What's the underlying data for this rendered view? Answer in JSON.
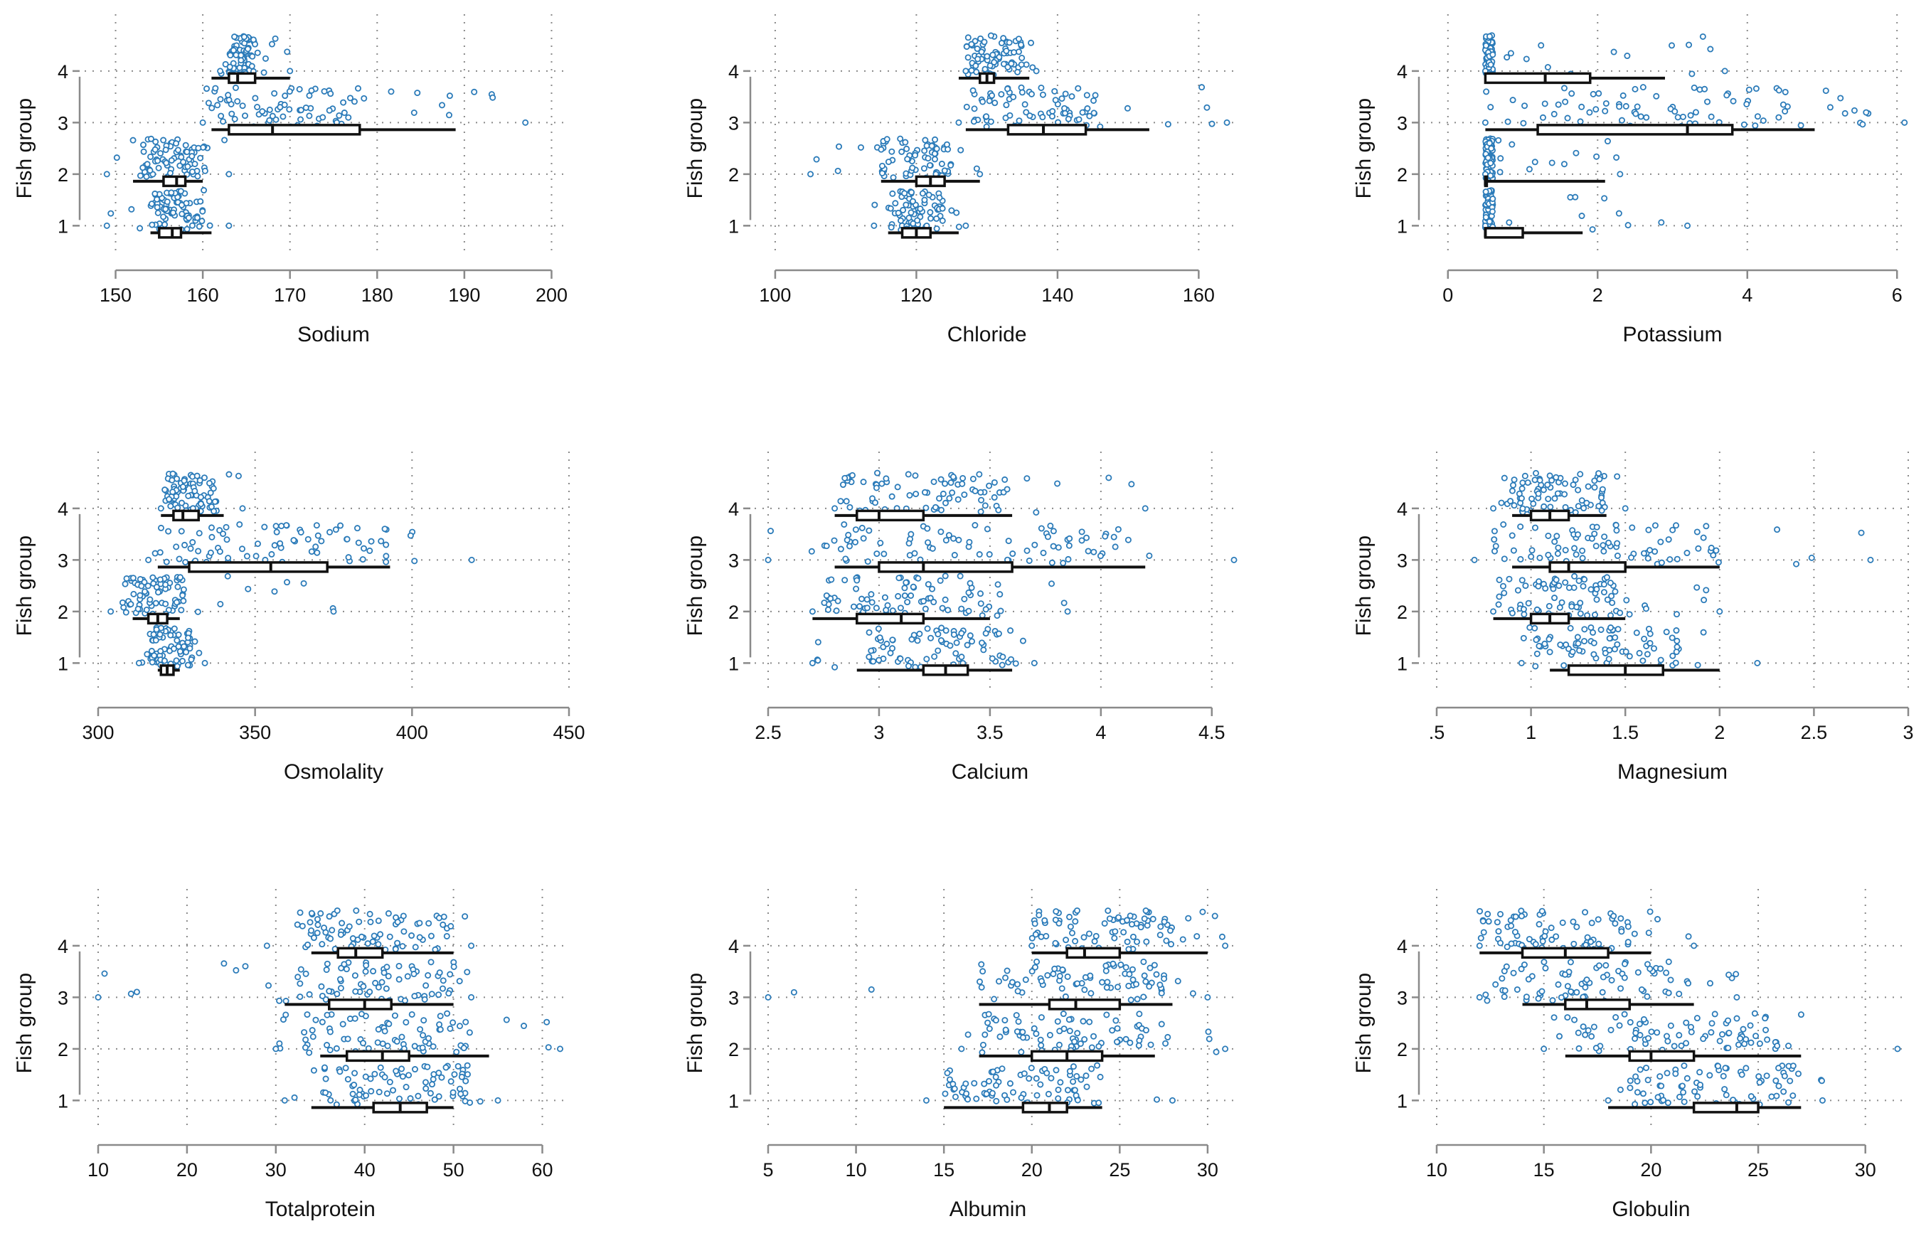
{
  "figure": {
    "y_axis_title": "Fish group",
    "point_color": "#2b7bb9",
    "box_color": "#111111",
    "grid_color": "#8a8a8a",
    "axis_color": "#8a8a8a"
  },
  "chart_data": [
    {
      "type": "stripplot-box",
      "variable": "Sodium",
      "xlabel": "Sodium",
      "ylabel": "Fish group",
      "xlim": [
        148,
        202
      ],
      "ylim": [
        0.55,
        4.55
      ],
      "xticks": [
        150,
        160,
        170,
        180,
        190,
        200
      ],
      "xtick_labels": [
        "150",
        "160",
        "170",
        "180",
        "190",
        "200"
      ],
      "yticks": [
        1,
        2,
        3,
        4
      ],
      "ytick_labels": [
        "1",
        "2",
        "3",
        "4"
      ],
      "grid": true,
      "groups": [
        {
          "group": 1,
          "whisker_low": 154,
          "q1": 155,
          "median": 156.5,
          "q3": 157.5,
          "whisker_high": 161,
          "range": [
            149,
            163
          ],
          "dense": [
            154,
            160
          ]
        },
        {
          "group": 2,
          "whisker_low": 152,
          "q1": 155.5,
          "median": 157,
          "q3": 158,
          "whisker_high": 160,
          "range": [
            149,
            163
          ],
          "dense": [
            153,
            160
          ]
        },
        {
          "group": 3,
          "whisker_low": 161,
          "q1": 163,
          "median": 168,
          "q3": 178,
          "whisker_high": 189,
          "range": [
            160,
            197
          ],
          "dense": [
            161,
            178
          ]
        },
        {
          "group": 4,
          "whisker_low": 161,
          "q1": 163,
          "median": 164,
          "q3": 166,
          "whisker_high": 170,
          "range": [
            162,
            170
          ],
          "dense": [
            163,
            166
          ]
        }
      ]
    },
    {
      "type": "stripplot-box",
      "variable": "Chloride",
      "xlabel": "Chloride",
      "ylabel": "Fish group",
      "xlim": [
        99,
        165
      ],
      "ylim": [
        0.55,
        4.55
      ],
      "xticks": [
        100,
        120,
        140,
        160
      ],
      "xtick_labels": [
        "100",
        "120",
        "140",
        "160"
      ],
      "yticks": [
        1,
        2,
        3,
        4
      ],
      "ytick_labels": [
        "1",
        "2",
        "3",
        "4"
      ],
      "grid": true,
      "groups": [
        {
          "group": 1,
          "whisker_low": 116,
          "q1": 118,
          "median": 120,
          "q3": 122,
          "whisker_high": 126,
          "range": [
            114,
            127
          ],
          "dense": [
            116,
            124
          ]
        },
        {
          "group": 2,
          "whisker_low": 115,
          "q1": 120,
          "median": 122,
          "q3": 124,
          "whisker_high": 129,
          "range": [
            105,
            129
          ],
          "dense": [
            115,
            125
          ]
        },
        {
          "group": 3,
          "whisker_low": 127,
          "q1": 133,
          "median": 138,
          "q3": 144,
          "whisker_high": 153,
          "range": [
            126,
            164
          ],
          "dense": [
            128,
            146
          ]
        },
        {
          "group": 4,
          "whisker_low": 126,
          "q1": 129,
          "median": 130,
          "q3": 131,
          "whisker_high": 136,
          "range": [
            127,
            137
          ],
          "dense": [
            127,
            135
          ]
        }
      ]
    },
    {
      "type": "stripplot-box",
      "variable": "Potassium",
      "xlabel": "Potassium",
      "ylabel": "Fish group",
      "xlim": [
        -0.15,
        6.15
      ],
      "ylim": [
        0.55,
        4.55
      ],
      "xticks": [
        0,
        2,
        4,
        6
      ],
      "xtick_labels": [
        "0",
        "2",
        "4",
        "6"
      ],
      "yticks": [
        1,
        2,
        3,
        4
      ],
      "ytick_labels": [
        "1",
        "2",
        "3",
        "4"
      ],
      "grid": true,
      "groups": [
        {
          "group": 1,
          "whisker_low": 0.5,
          "q1": 0.5,
          "median": 0.5,
          "q3": 1.0,
          "whisker_high": 1.8,
          "range": [
            0.5,
            3.2
          ],
          "dense": [
            0.5,
            0.6
          ]
        },
        {
          "group": 2,
          "whisker_low": 0.5,
          "q1": 0.5,
          "median": 0.5,
          "q3": 0.5,
          "whisker_high": 2.1,
          "range": [
            0.5,
            2.3
          ],
          "dense": [
            0.5,
            0.6
          ]
        },
        {
          "group": 3,
          "whisker_low": 0.5,
          "q1": 1.2,
          "median": 3.2,
          "q3": 3.8,
          "whisker_high": 4.9,
          "range": [
            0.5,
            6.1
          ],
          "dense": [
            0.5,
            4.6
          ]
        },
        {
          "group": 4,
          "whisker_low": 0.5,
          "q1": 0.5,
          "median": 1.3,
          "q3": 1.9,
          "whisker_high": 2.9,
          "range": [
            0.5,
            3.7
          ],
          "dense": [
            0.5,
            0.6
          ]
        }
      ]
    },
    {
      "type": "stripplot-box",
      "variable": "Osmolality",
      "xlabel": "Osmolality",
      "ylabel": "Fish group",
      "xlim": [
        300,
        450
      ],
      "ylim": [
        0.55,
        4.55
      ],
      "xticks": [
        300,
        350,
        400,
        450
      ],
      "xtick_labels": [
        "300",
        "350",
        "400",
        "450"
      ],
      "yticks": [
        1,
        2,
        3,
        4
      ],
      "ytick_labels": [
        "1",
        "2",
        "3",
        "4"
      ],
      "grid": true,
      "groups": [
        {
          "group": 1,
          "whisker_low": 319,
          "q1": 320,
          "median": 322,
          "q3": 324,
          "whisker_high": 326,
          "range": [
            313,
            334
          ],
          "dense": [
            316,
            330
          ]
        },
        {
          "group": 2,
          "whisker_low": 311,
          "q1": 316,
          "median": 319,
          "q3": 322,
          "whisker_high": 326,
          "range": [
            304,
            375
          ],
          "dense": [
            308,
            328
          ]
        },
        {
          "group": 3,
          "whisker_low": 319,
          "q1": 329,
          "median": 355,
          "q3": 373,
          "whisker_high": 393,
          "range": [
            316,
            419
          ],
          "dense": [
            318,
            392
          ]
        },
        {
          "group": 4,
          "whisker_low": 320,
          "q1": 324,
          "median": 327,
          "q3": 332,
          "whisker_high": 340,
          "range": [
            320,
            346
          ],
          "dense": [
            321,
            338
          ]
        }
      ]
    },
    {
      "type": "stripplot-box",
      "variable": "Calcium",
      "xlabel": "Calcium",
      "ylabel": "Fish group",
      "xlim": [
        2.5,
        4.6
      ],
      "ylim": [
        0.55,
        4.55
      ],
      "xticks": [
        2.5,
        3,
        3.5,
        4,
        4.5
      ],
      "xtick_labels": [
        "2.5",
        "3",
        "3.5",
        "4",
        "4.5"
      ],
      "yticks": [
        1,
        2,
        3,
        4
      ],
      "ytick_labels": [
        "1",
        "2",
        "3",
        "4"
      ],
      "grid": true,
      "groups": [
        {
          "group": 1,
          "whisker_low": 2.9,
          "q1": 3.2,
          "median": 3.3,
          "q3": 3.4,
          "whisker_high": 3.6,
          "range": [
            2.7,
            3.7
          ],
          "dense": [
            2.95,
            3.6
          ]
        },
        {
          "group": 2,
          "whisker_low": 2.7,
          "q1": 2.9,
          "median": 3.1,
          "q3": 3.2,
          "whisker_high": 3.5,
          "range": [
            2.7,
            3.85
          ],
          "dense": [
            2.75,
            3.5
          ]
        },
        {
          "group": 3,
          "whisker_low": 2.8,
          "q1": 3.0,
          "median": 3.2,
          "q3": 3.6,
          "whisker_high": 4.2,
          "range": [
            2.5,
            4.6
          ],
          "dense": [
            2.75,
            4.1
          ]
        },
        {
          "group": 4,
          "whisker_low": 2.8,
          "q1": 2.9,
          "median": 3.0,
          "q3": 3.2,
          "whisker_high": 3.6,
          "range": [
            2.8,
            4.2
          ],
          "dense": [
            2.8,
            3.6
          ]
        }
      ]
    },
    {
      "type": "stripplot-box",
      "variable": "Magnesium",
      "xlabel": "Magnesium",
      "ylabel": "Fish group",
      "xlim": [
        0.5,
        3.0
      ],
      "ylim": [
        0.55,
        4.55
      ],
      "xticks": [
        0.5,
        1,
        1.5,
        2,
        2.5,
        3
      ],
      "xtick_labels": [
        ".5",
        "1",
        "1.5",
        "2",
        "2.5",
        "3"
      ],
      "yticks": [
        1,
        2,
        3,
        4
      ],
      "ytick_labels": [
        "1",
        "2",
        "3",
        "4"
      ],
      "grid": true,
      "groups": [
        {
          "group": 1,
          "whisker_low": 1.1,
          "q1": 1.2,
          "median": 1.5,
          "q3": 1.7,
          "whisker_high": 2.0,
          "range": [
            0.95,
            2.2
          ],
          "dense": [
            1.0,
            1.8
          ]
        },
        {
          "group": 2,
          "whisker_low": 0.8,
          "q1": 1.0,
          "median": 1.1,
          "q3": 1.2,
          "whisker_high": 1.5,
          "range": [
            0.8,
            2.0
          ],
          "dense": [
            0.8,
            1.5
          ]
        },
        {
          "group": 3,
          "whisker_low": 0.9,
          "q1": 1.1,
          "median": 1.2,
          "q3": 1.5,
          "whisker_high": 2.0,
          "range": [
            0.7,
            2.8
          ],
          "dense": [
            0.8,
            2.0
          ]
        },
        {
          "group": 4,
          "whisker_low": 0.9,
          "q1": 1.0,
          "median": 1.1,
          "q3": 1.2,
          "whisker_high": 1.4,
          "range": [
            0.8,
            1.5
          ],
          "dense": [
            0.85,
            1.4
          ]
        }
      ]
    },
    {
      "type": "stripplot-box",
      "variable": "Totalprotein",
      "xlabel": "Totalprotein",
      "ylabel": "Fish group",
      "xlim": [
        10,
        63
      ],
      "ylim": [
        0.55,
        4.55
      ],
      "xticks": [
        10,
        20,
        30,
        40,
        50,
        60
      ],
      "xtick_labels": [
        "10",
        "20",
        "30",
        "40",
        "50",
        "60"
      ],
      "yticks": [
        1,
        2,
        3,
        4
      ],
      "ytick_labels": [
        "1",
        "2",
        "3",
        "4"
      ],
      "grid": true,
      "groups": [
        {
          "group": 1,
          "whisker_low": 34,
          "q1": 41,
          "median": 44,
          "q3": 47,
          "whisker_high": 50,
          "range": [
            31,
            55
          ],
          "dense": [
            35,
            52
          ]
        },
        {
          "group": 2,
          "whisker_low": 35,
          "q1": 38,
          "median": 42,
          "q3": 45,
          "whisker_high": 54,
          "range": [
            30,
            62
          ],
          "dense": [
            33,
            52
          ]
        },
        {
          "group": 3,
          "whisker_low": 31,
          "q1": 36,
          "median": 40,
          "q3": 43,
          "whisker_high": 50,
          "range": [
            10,
            52
          ],
          "dense": [
            31,
            51
          ]
        },
        {
          "group": 4,
          "whisker_low": 34,
          "q1": 37,
          "median": 39,
          "q3": 42,
          "whisker_high": 50,
          "range": [
            29,
            52
          ],
          "dense": [
            33,
            51
          ]
        }
      ]
    },
    {
      "type": "stripplot-box",
      "variable": "Albumin",
      "xlabel": "Albumin",
      "ylabel": "Fish group",
      "xlim": [
        5,
        31.5
      ],
      "ylim": [
        0.55,
        4.55
      ],
      "xticks": [
        5,
        10,
        15,
        20,
        25,
        30
      ],
      "xtick_labels": [
        "5",
        "10",
        "15",
        "20",
        "25",
        "30"
      ],
      "yticks": [
        1,
        2,
        3,
        4
      ],
      "ytick_labels": [
        "1",
        "2",
        "3",
        "4"
      ],
      "grid": true,
      "groups": [
        {
          "group": 1,
          "whisker_low": 15,
          "q1": 19.5,
          "median": 21,
          "q3": 22,
          "whisker_high": 24,
          "range": [
            14,
            28
          ],
          "dense": [
            15,
            24
          ]
        },
        {
          "group": 2,
          "whisker_low": 17,
          "q1": 20,
          "median": 22,
          "q3": 24,
          "whisker_high": 27,
          "range": [
            16,
            31
          ],
          "dense": [
            17,
            27
          ]
        },
        {
          "group": 3,
          "whisker_low": 17,
          "q1": 21,
          "median": 22.5,
          "q3": 25,
          "whisker_high": 28,
          "range": [
            5,
            30
          ],
          "dense": [
            17,
            28
          ]
        },
        {
          "group": 4,
          "whisker_low": 20,
          "q1": 22,
          "median": 23,
          "q3": 25,
          "whisker_high": 30,
          "range": [
            20,
            31
          ],
          "dense": [
            20,
            28
          ]
        }
      ]
    },
    {
      "type": "stripplot-box",
      "variable": "Globulin",
      "xlabel": "Globulin",
      "ylabel": "Fish group",
      "xlim": [
        10,
        32
      ],
      "ylim": [
        0.55,
        4.55
      ],
      "xticks": [
        10,
        15,
        20,
        25,
        30
      ],
      "xtick_labels": [
        "10",
        "15",
        "20",
        "25",
        "30"
      ],
      "yticks": [
        1,
        2,
        3,
        4
      ],
      "ytick_labels": [
        "1",
        "2",
        "3",
        "4"
      ],
      "grid": true,
      "groups": [
        {
          "group": 1,
          "whisker_low": 18,
          "q1": 22,
          "median": 24,
          "q3": 25,
          "whisker_high": 27,
          "range": [
            18,
            28
          ],
          "dense": [
            19,
            27
          ]
        },
        {
          "group": 2,
          "whisker_low": 16,
          "q1": 19,
          "median": 20,
          "q3": 22,
          "whisker_high": 27,
          "range": [
            15,
            31.5
          ],
          "dense": [
            16,
            26
          ]
        },
        {
          "group": 3,
          "whisker_low": 14,
          "q1": 16,
          "median": 17,
          "q3": 19,
          "whisker_high": 22,
          "range": [
            12,
            24
          ],
          "dense": [
            13,
            21
          ]
        },
        {
          "group": 4,
          "whisker_low": 12,
          "q1": 14,
          "median": 16,
          "q3": 18,
          "whisker_high": 20,
          "range": [
            12,
            22
          ],
          "dense": [
            12,
            19
          ]
        }
      ]
    }
  ]
}
